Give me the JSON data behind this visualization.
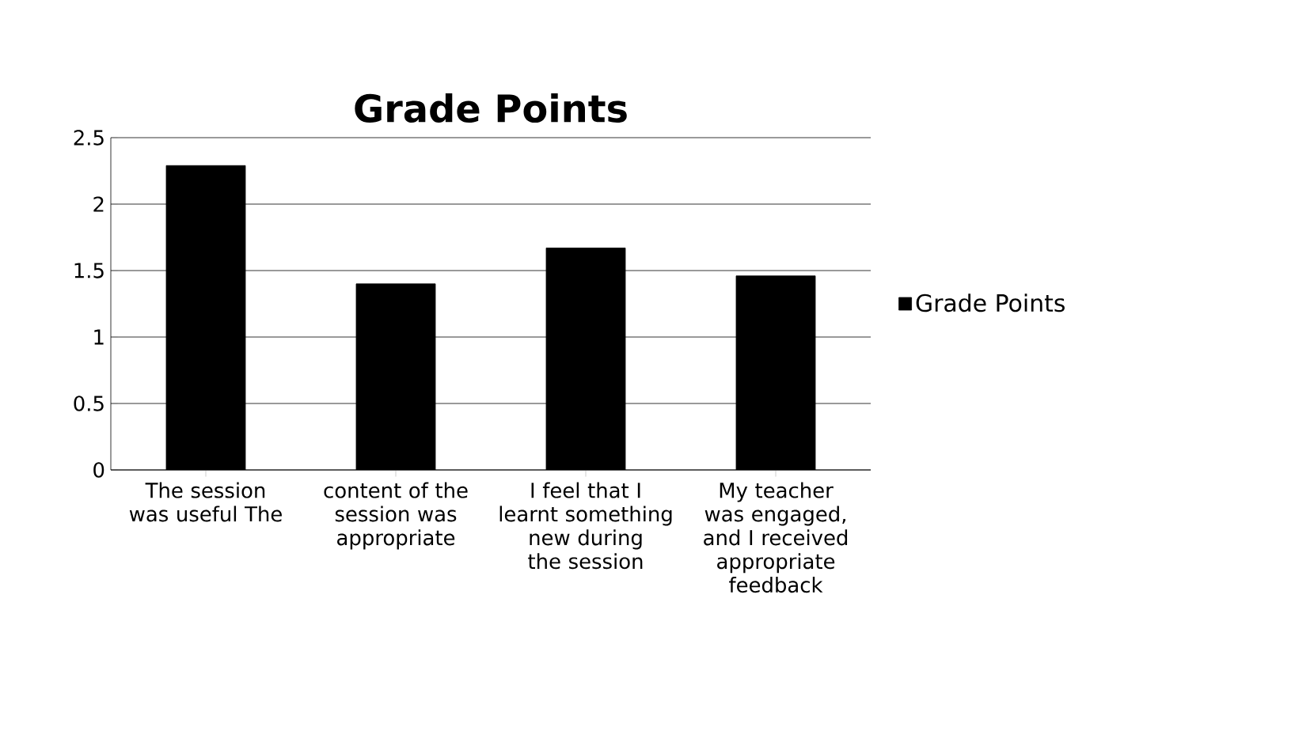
{
  "chart_data": {
    "type": "bar",
    "title": "Grade Points",
    "categories": [
      "The session was useful The",
      "content of the session was appropriate",
      "I feel that I learnt something new during the session",
      "My teacher was engaged, and I received appropriate feedback"
    ],
    "series": [
      {
        "name": "Grade Points",
        "color": "#000000",
        "values": [
          2.29,
          1.4,
          1.67,
          1.46
        ]
      }
    ],
    "ylim": [
      0,
      2.5
    ],
    "yticks": [
      0,
      0.5,
      1,
      1.5,
      2,
      2.5
    ],
    "grid": "y",
    "legend": "right"
  }
}
